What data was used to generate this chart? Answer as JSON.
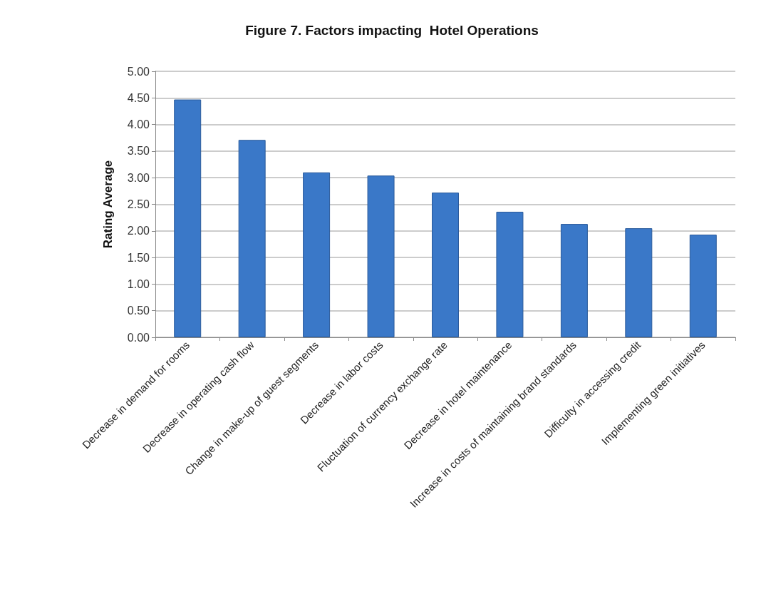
{
  "chart_data": {
    "type": "bar",
    "title": "Figure 7. Factors impacting  Hotel Operations",
    "ylabel": "Rating Average",
    "categories": [
      "Decrease in demand for rooms",
      "Decrease in operating cash flow",
      "Change in make-up of guest segments",
      "Decrease in labor costs",
      "Fluctuation of currency exchange rate",
      "Decrease in hotel maintenance",
      "Increase in costs of maintaining brand standards",
      "Difficulty in accessing credit",
      "Implementing green initiatives"
    ],
    "values": [
      4.47,
      3.71,
      3.1,
      3.04,
      2.72,
      2.36,
      2.13,
      2.05,
      1.93
    ],
    "color": "#3a78c8",
    "ylim": [
      0,
      5
    ],
    "yticks": [
      {
        "value": 0,
        "label": "0.00"
      },
      {
        "value": 0.5,
        "label": "0.50"
      },
      {
        "value": 1,
        "label": "1.00"
      },
      {
        "value": 1.5,
        "label": "1.50"
      },
      {
        "value": 2,
        "label": "2.00"
      },
      {
        "value": 2.5,
        "label": "2.50"
      },
      {
        "value": 3,
        "label": "3.00"
      },
      {
        "value": 3.5,
        "label": "3.50"
      },
      {
        "value": 4,
        "label": "4.00"
      },
      {
        "value": 4.5,
        "label": "4.50"
      },
      {
        "value": 5,
        "label": "5.00"
      }
    ],
    "grid": "y"
  }
}
